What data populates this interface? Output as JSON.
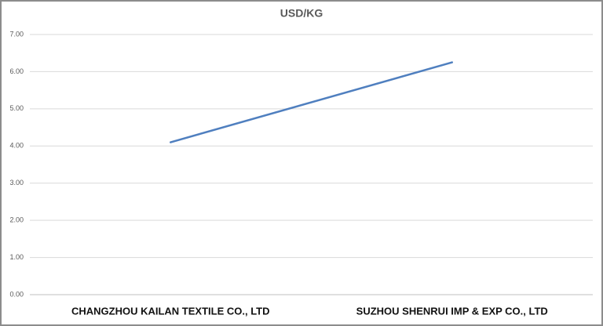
{
  "chart_data": {
    "type": "line",
    "title": "USD/KG",
    "categories": [
      "CHANGZHOU KAILAN TEXTILE CO., LTD",
      "SUZHOU SHENRUI IMP & EXP CO., LTD"
    ],
    "series": [
      {
        "name": "USD/KG",
        "color": "#4f7fbf",
        "values": [
          4.1,
          6.25
        ]
      }
    ],
    "ylim": [
      0,
      7
    ],
    "yticks": [
      {
        "value": 0,
        "label": "0.00"
      },
      {
        "value": 1,
        "label": "1.00"
      },
      {
        "value": 2,
        "label": "2.00"
      },
      {
        "value": 3,
        "label": "3.00"
      },
      {
        "value": 4,
        "label": "4.00"
      },
      {
        "value": 5,
        "label": "5.00"
      },
      {
        "value": 6,
        "label": "6.00"
      },
      {
        "value": 7,
        "label": "7.00"
      }
    ],
    "grid": true
  }
}
